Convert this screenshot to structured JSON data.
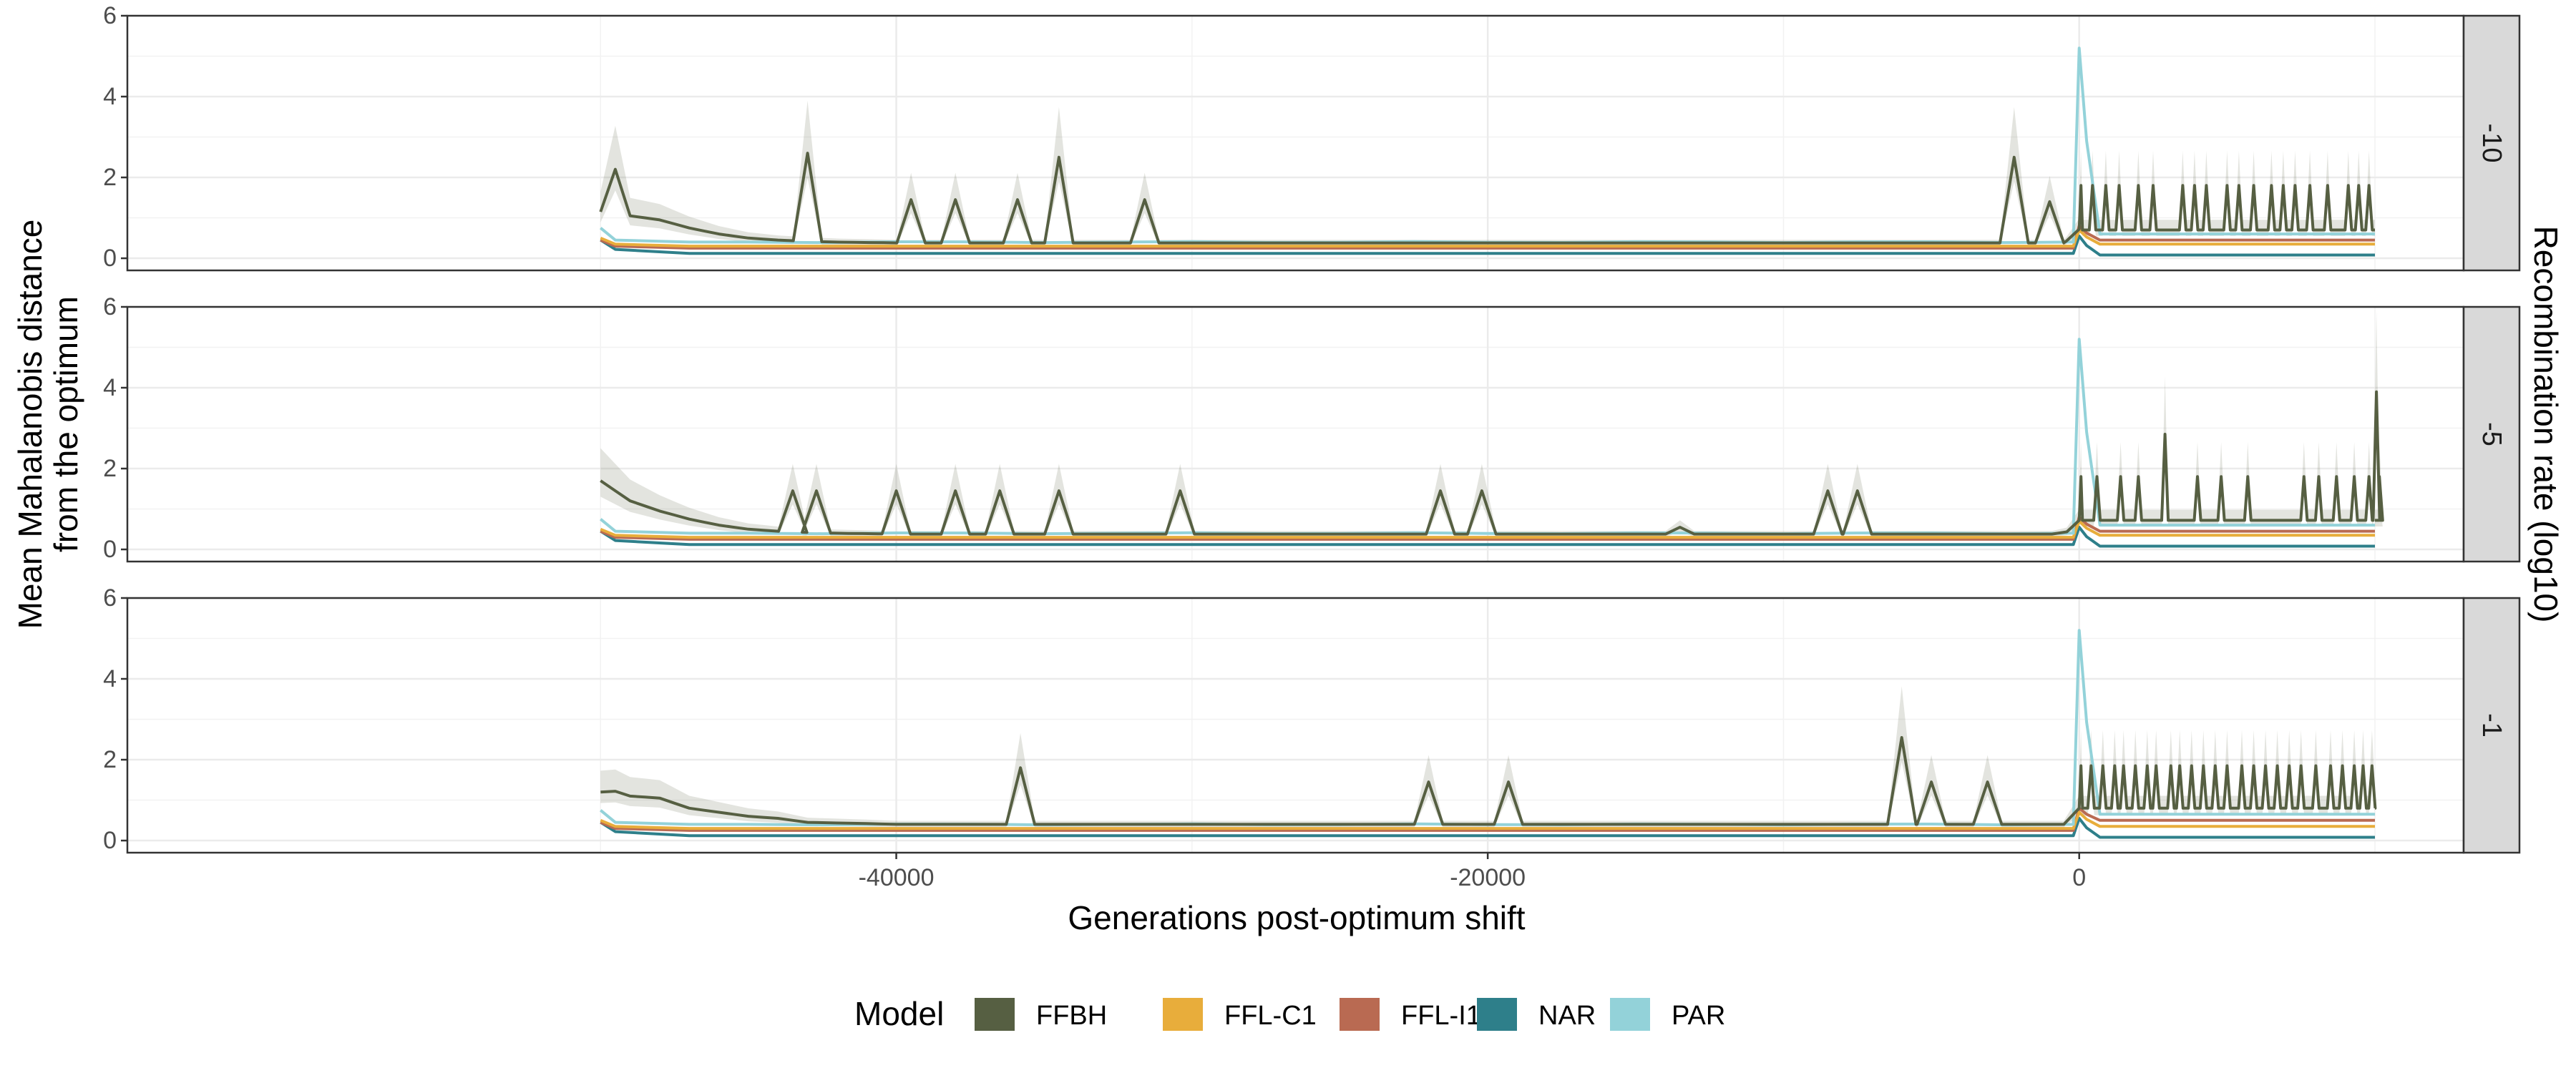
{
  "chart_data": {
    "type": "line",
    "xlabel": "Generations post-optimum shift",
    "ylabel_lines": [
      "Mean Mahalanobis distance",
      "from the optimum"
    ],
    "facet_label": "Recombination rate (log10)",
    "x_ticks": [
      -40000,
      -20000,
      0
    ],
    "y_ticks": [
      0,
      2,
      4,
      6
    ],
    "xlim": [
      -66000,
      13000
    ],
    "ylim": [
      -0.3,
      6
    ],
    "grid": true,
    "legend_position": "bottom",
    "legend": {
      "title": "Model",
      "entries": [
        {
          "name": "FFBH",
          "color": "#565f42"
        },
        {
          "name": "FFL-C1",
          "color": "#e8ad3b"
        },
        {
          "name": "FFL-I1",
          "color": "#b96a52"
        },
        {
          "name": "NAR",
          "color": "#2e7f8a"
        },
        {
          "name": "PAR",
          "color": "#93d2d9"
        }
      ]
    },
    "panels": [
      {
        "facet": "-10",
        "baseline": {
          "PAR": 0.4,
          "FFL-C1": 0.3,
          "FFL-I1": 0.25,
          "NAR": 0.12
        },
        "post_levels": {
          "PAR": 0.6,
          "FFL-C1": 0.35,
          "FFL-I1": 0.45,
          "NAR": 0.08,
          "FFBH": 0.7
        },
        "ffbh_pre": [
          [
            -50000,
            1.15
          ],
          [
            -49500,
            2.2
          ],
          [
            -49000,
            1.05
          ],
          [
            -48000,
            0.95
          ],
          [
            -47000,
            0.75
          ],
          [
            -46000,
            0.6
          ],
          [
            -45000,
            0.5
          ],
          [
            -44000,
            0.45
          ],
          [
            -43000,
            0.42
          ],
          [
            -42000,
            0.4
          ],
          [
            -40000,
            0.38
          ],
          [
            -3000,
            0.38
          ],
          [
            -500,
            0.38
          ],
          [
            0,
            0.72
          ]
        ],
        "ffbh_pre_peaks": [
          [
            -43000,
            2.6
          ],
          [
            -39500,
            1.45
          ],
          [
            -38000,
            1.45
          ],
          [
            -35900,
            1.45
          ],
          [
            -34500,
            2.5
          ],
          [
            -31600,
            1.45
          ],
          [
            -2200,
            2.5
          ],
          [
            -1000,
            1.4
          ]
        ],
        "ffbh_post_peaks": [
          [
            0,
            1.8
          ],
          [
            450,
            1.8
          ],
          [
            900,
            1.8
          ],
          [
            1350,
            1.8
          ],
          [
            2000,
            1.8
          ],
          [
            2500,
            1.8
          ],
          [
            3500,
            1.8
          ],
          [
            3900,
            1.8
          ],
          [
            4300,
            1.8
          ],
          [
            5000,
            1.8
          ],
          [
            5400,
            1.8
          ],
          [
            5900,
            1.8
          ],
          [
            6500,
            1.8
          ],
          [
            6900,
            1.8
          ],
          [
            7300,
            1.8
          ],
          [
            7800,
            1.8
          ],
          [
            8400,
            1.8
          ],
          [
            9100,
            1.8
          ],
          [
            9450,
            1.8
          ],
          [
            9800,
            1.8
          ]
        ]
      },
      {
        "facet": "-5",
        "baseline": {
          "PAR": 0.4,
          "FFL-C1": 0.3,
          "FFL-I1": 0.25,
          "NAR": 0.12
        },
        "post_levels": {
          "PAR": 0.6,
          "FFL-C1": 0.35,
          "FFL-I1": 0.45,
          "NAR": 0.08,
          "FFBH": 0.72
        },
        "ffbh_pre": [
          [
            -50000,
            1.7
          ],
          [
            -49500,
            1.45
          ],
          [
            -49000,
            1.2
          ],
          [
            -48000,
            0.95
          ],
          [
            -47000,
            0.75
          ],
          [
            -46000,
            0.6
          ],
          [
            -45000,
            0.5
          ],
          [
            -44000,
            0.45
          ],
          [
            -43000,
            0.42
          ],
          [
            -42000,
            0.4
          ],
          [
            -40000,
            0.38
          ],
          [
            -3000,
            0.38
          ],
          [
            -500,
            0.38
          ],
          [
            0,
            0.72
          ]
        ],
        "ffbh_pre_peaks": [
          [
            -43500,
            1.45
          ],
          [
            -42700,
            1.45
          ],
          [
            -40000,
            1.45
          ],
          [
            -38000,
            1.45
          ],
          [
            -36500,
            1.45
          ],
          [
            -34500,
            1.45
          ],
          [
            -30400,
            1.45
          ],
          [
            -21600,
            1.45
          ],
          [
            -20200,
            1.45
          ],
          [
            -13500,
            0.55
          ],
          [
            -8500,
            1.45
          ],
          [
            -7500,
            1.45
          ]
        ],
        "ffbh_post_peaks": [
          [
            0,
            1.8
          ],
          [
            600,
            1.8
          ],
          [
            1400,
            1.8
          ],
          [
            2000,
            1.8
          ],
          [
            2900,
            2.85
          ],
          [
            4000,
            1.8
          ],
          [
            4800,
            1.8
          ],
          [
            5700,
            1.8
          ],
          [
            7600,
            1.8
          ],
          [
            8100,
            1.8
          ],
          [
            8700,
            1.8
          ],
          [
            9300,
            1.8
          ],
          [
            9800,
            1.8
          ],
          [
            10050,
            3.9
          ],
          [
            10150,
            1.8
          ]
        ]
      },
      {
        "facet": "-1",
        "baseline": {
          "PAR": 0.4,
          "FFL-C1": 0.3,
          "FFL-I1": 0.25,
          "NAR": 0.12
        },
        "post_levels": {
          "PAR": 0.65,
          "FFL-C1": 0.35,
          "FFL-I1": 0.5,
          "NAR": 0.08,
          "FFBH": 0.8
        },
        "ffbh_pre": [
          [
            -50000,
            1.2
          ],
          [
            -49500,
            1.22
          ],
          [
            -49000,
            1.1
          ],
          [
            -48000,
            1.05
          ],
          [
            -47000,
            0.8
          ],
          [
            -46000,
            0.7
          ],
          [
            -45000,
            0.6
          ],
          [
            -44000,
            0.55
          ],
          [
            -43000,
            0.45
          ],
          [
            -41000,
            0.42
          ],
          [
            -40000,
            0.4
          ],
          [
            -3000,
            0.4
          ],
          [
            -500,
            0.4
          ],
          [
            0,
            0.8
          ]
        ],
        "ffbh_pre_peaks": [
          [
            -35800,
            1.8
          ],
          [
            -22000,
            1.45
          ],
          [
            -19300,
            1.45
          ],
          [
            -6000,
            2.55
          ],
          [
            -5000,
            1.45
          ],
          [
            -3100,
            1.45
          ]
        ],
        "ffbh_post_peaks": [
          [
            0,
            1.85
          ],
          [
            400,
            1.85
          ],
          [
            800,
            1.85
          ],
          [
            1200,
            1.85
          ],
          [
            1500,
            1.85
          ],
          [
            1900,
            1.85
          ],
          [
            2300,
            1.85
          ],
          [
            2600,
            1.85
          ],
          [
            3100,
            1.85
          ],
          [
            3400,
            1.85
          ],
          [
            3800,
            1.85
          ],
          [
            4200,
            1.85
          ],
          [
            4600,
            1.85
          ],
          [
            5000,
            1.85
          ],
          [
            5500,
            1.85
          ],
          [
            5900,
            1.85
          ],
          [
            6300,
            1.85
          ],
          [
            6700,
            1.85
          ],
          [
            7100,
            1.85
          ],
          [
            7500,
            1.85
          ],
          [
            8000,
            1.85
          ],
          [
            8500,
            1.85
          ],
          [
            8900,
            1.85
          ],
          [
            9300,
            1.85
          ],
          [
            9600,
            1.85
          ],
          [
            9900,
            1.85
          ]
        ]
      }
    ]
  }
}
